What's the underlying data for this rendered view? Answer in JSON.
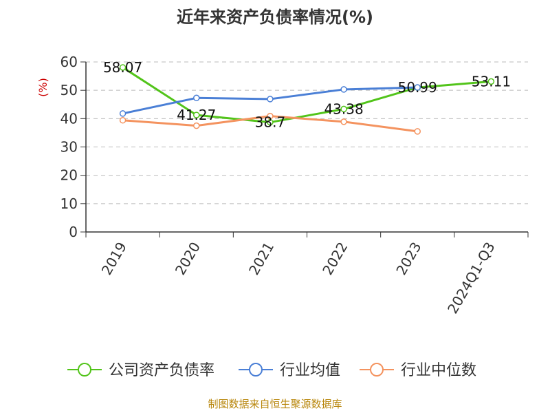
{
  "chart_data": {
    "type": "line",
    "title": "近年来资产负债率情况(%)",
    "ylabel": "(%)",
    "categories": [
      "2019",
      "2020",
      "2021",
      "2022",
      "2023",
      "2024Q1-Q3"
    ],
    "yticks": [
      "0",
      "10",
      "20",
      "30",
      "40",
      "50",
      "60"
    ],
    "ylim": [
      0,
      60
    ],
    "grid": true,
    "legend_position": "bottom",
    "series": [
      {
        "name": "公司资产负债率",
        "color": "#52c41a",
        "values": [
          58.07,
          41.27,
          38.7,
          43.38,
          50.99,
          53.11
        ],
        "labels": [
          "58.07",
          "41.27",
          "38.7",
          "43.38",
          "50.99",
          "53.11"
        ]
      },
      {
        "name": "行业均值",
        "color": "#4a7fd6",
        "values": [
          41.8,
          47.3,
          46.9,
          50.3,
          51.0,
          null
        ]
      },
      {
        "name": "行业中位数",
        "color": "#f4935f",
        "values": [
          39.4,
          37.5,
          40.9,
          38.9,
          35.5,
          null
        ]
      }
    ]
  },
  "source": "制图数据来自恒生聚源数据库"
}
